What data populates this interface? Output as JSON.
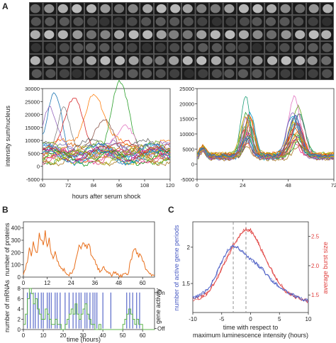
{
  "panels": {
    "a": "A",
    "b": "B",
    "c": "C"
  },
  "colors": {
    "orange": "#e86e1a",
    "green": "#5bb34a",
    "blue": "#4a5cc4",
    "red": "#e0413f",
    "dash": "#888888"
  },
  "chart_data": [
    {
      "type": "line",
      "id": "A-left",
      "ylabel": "intensity sum/nucleus",
      "xlabel": "hours after serum shock",
      "xlim": [
        60,
        120
      ],
      "ylim": [
        -5000,
        30000
      ],
      "xticks": [
        "60",
        "72",
        "84",
        "96",
        "108",
        "120"
      ],
      "yticks": [
        "-5000",
        "0",
        "5000",
        "10000",
        "15000",
        "20000",
        "25000",
        "30000"
      ],
      "note": "many single-cell traces (~25 series); peaks near 66h (~24000), 84h (~22000), 96h (~28000)"
    },
    {
      "type": "line",
      "id": "A-right",
      "ylabel": "",
      "xlabel": "",
      "xlim": [
        0,
        72
      ],
      "ylim": [
        -5000,
        25000
      ],
      "xticks": [
        "0",
        "24",
        "48",
        "72"
      ],
      "yticks": [
        "-5000",
        "0",
        "5000",
        "10000",
        "15000",
        "20000",
        "25000"
      ],
      "note": "many traces; peaks near 27h (~21000) and 52h (~20000)"
    },
    {
      "type": "line",
      "id": "B-top",
      "ylabel": "number of proteins",
      "xlim": [
        0,
        66
      ],
      "ylim": [
        0,
        450
      ],
      "xticks": [
        "0",
        "12",
        "24",
        "36",
        "48",
        "60"
      ],
      "yticks": [
        "0",
        "100",
        "200",
        "300",
        "400"
      ],
      "series": [
        {
          "x": [
            0,
            1,
            2,
            3,
            4,
            5,
            6,
            7,
            8,
            9,
            10,
            11,
            12,
            13,
            14,
            15,
            16,
            17,
            18,
            19,
            20,
            21,
            22,
            23,
            24,
            25,
            26,
            27,
            28,
            29,
            30,
            31,
            32,
            33,
            34,
            35,
            36,
            37,
            38,
            39,
            40,
            41,
            42,
            43,
            44,
            45,
            46,
            47,
            48,
            49,
            50,
            51,
            52,
            53,
            54,
            55,
            56,
            57,
            58,
            59,
            60,
            61,
            62,
            63,
            64,
            65,
            66
          ],
          "y": [
            20,
            60,
            120,
            240,
            170,
            290,
            220,
            200,
            360,
            300,
            260,
            380,
            250,
            320,
            190,
            150,
            210,
            130,
            90,
            70,
            50,
            40,
            20,
            10,
            30,
            60,
            110,
            180,
            260,
            230,
            280,
            250,
            230,
            270,
            180,
            160,
            140,
            100,
            70,
            50,
            80,
            60,
            40,
            30,
            20,
            25,
            30,
            20,
            15,
            20,
            25,
            30,
            20,
            40,
            140,
            200,
            230,
            190,
            160,
            180,
            130,
            100,
            60,
            40,
            30,
            20,
            15
          ]
        }
      ]
    },
    {
      "type": "line",
      "id": "B-bottom",
      "ylabel": "number of mRNAs",
      "y2label": "gene activity",
      "xlabel": "time (hours)",
      "xlim": [
        0,
        66
      ],
      "ylim": [
        0,
        8
      ],
      "xticks": [
        "0",
        "10",
        "20",
        "30",
        "40",
        "50",
        "60"
      ],
      "yticks": [
        "0",
        "2",
        "4",
        "6",
        "8"
      ],
      "y2ticks": [
        "Off",
        "On"
      ],
      "series": [
        {
          "x": [
            0,
            1,
            2,
            3,
            4,
            5,
            6,
            7,
            8,
            9,
            10,
            11,
            12,
            13,
            14,
            15,
            16,
            17,
            18,
            19,
            20,
            21,
            22,
            23,
            24,
            25,
            26,
            27,
            28,
            29,
            30,
            31,
            32,
            33,
            34,
            35,
            36,
            37,
            38,
            39,
            40,
            41,
            42,
            43,
            44,
            45,
            46,
            47,
            48,
            49,
            50,
            51,
            52,
            53,
            54,
            55,
            56,
            57,
            58,
            59,
            60,
            61,
            62,
            63,
            64,
            65,
            66
          ],
          "y": [
            1,
            3,
            6,
            8,
            7,
            5,
            6,
            4,
            3,
            2,
            2,
            4,
            3,
            2,
            1,
            1,
            2,
            1,
            1,
            0,
            0,
            1,
            2,
            3,
            4,
            3,
            5,
            3,
            2,
            3,
            4,
            5,
            3,
            2,
            1,
            1,
            0,
            0,
            1,
            0,
            0,
            0,
            0,
            0,
            0,
            0,
            0,
            0,
            0,
            0,
            1,
            2,
            3,
            4,
            3,
            2,
            1,
            2,
            1,
            1,
            0,
            0,
            0,
            0,
            0,
            0,
            0
          ]
        },
        {
          "events_on": [
            2,
            3.5,
            5,
            6,
            7.5,
            9,
            10,
            12,
            13,
            14,
            16,
            17,
            18.5,
            21,
            23,
            25,
            26.5,
            28,
            29,
            31,
            32,
            33.5,
            35,
            36,
            37,
            40,
            44,
            52,
            53.5,
            55,
            57,
            58.5
          ]
        }
      ]
    },
    {
      "type": "line",
      "id": "C",
      "ylabel": "number of active gene periods",
      "y2label": "average burst size",
      "xlabel": "time with respect to maximum luminescence intensity (hours)",
      "xlim": [
        -10,
        10
      ],
      "ylim": [
        1.1,
        2.35
      ],
      "y2lim": [
        1.2,
        2.75
      ],
      "xticks": [
        "-10",
        "-5",
        "0",
        "5",
        "10"
      ],
      "yticks": [
        "1.5",
        "2"
      ],
      "y2ticks": [
        "1.5",
        "2.0",
        "2.5"
      ],
      "vlines": [
        -3,
        -0.8
      ],
      "series": [
        {
          "axis": "left",
          "x": [
            -10,
            -9,
            -8,
            -7,
            -6,
            -5,
            -4,
            -3,
            -2,
            -1,
            0,
            1,
            2,
            3,
            4,
            5,
            6,
            7,
            8,
            9,
            10
          ],
          "y": [
            1.31,
            1.33,
            1.38,
            1.46,
            1.62,
            1.79,
            1.95,
            2.03,
            1.98,
            1.9,
            1.84,
            1.77,
            1.7,
            1.6,
            1.52,
            1.45,
            1.4,
            1.35,
            1.32,
            1.28,
            1.26
          ]
        },
        {
          "axis": "right",
          "x": [
            -10,
            -9,
            -8,
            -7,
            -6,
            -5,
            -4,
            -3,
            -2,
            -1,
            0,
            1,
            2,
            3,
            4,
            5,
            6,
            7,
            8,
            9,
            10
          ],
          "y": [
            1.42,
            1.44,
            1.49,
            1.58,
            1.75,
            1.95,
            2.15,
            2.35,
            2.5,
            2.62,
            2.6,
            2.45,
            2.25,
            2.05,
            1.85,
            1.7,
            1.58,
            1.5,
            1.45,
            1.42,
            1.4
          ]
        }
      ]
    }
  ]
}
